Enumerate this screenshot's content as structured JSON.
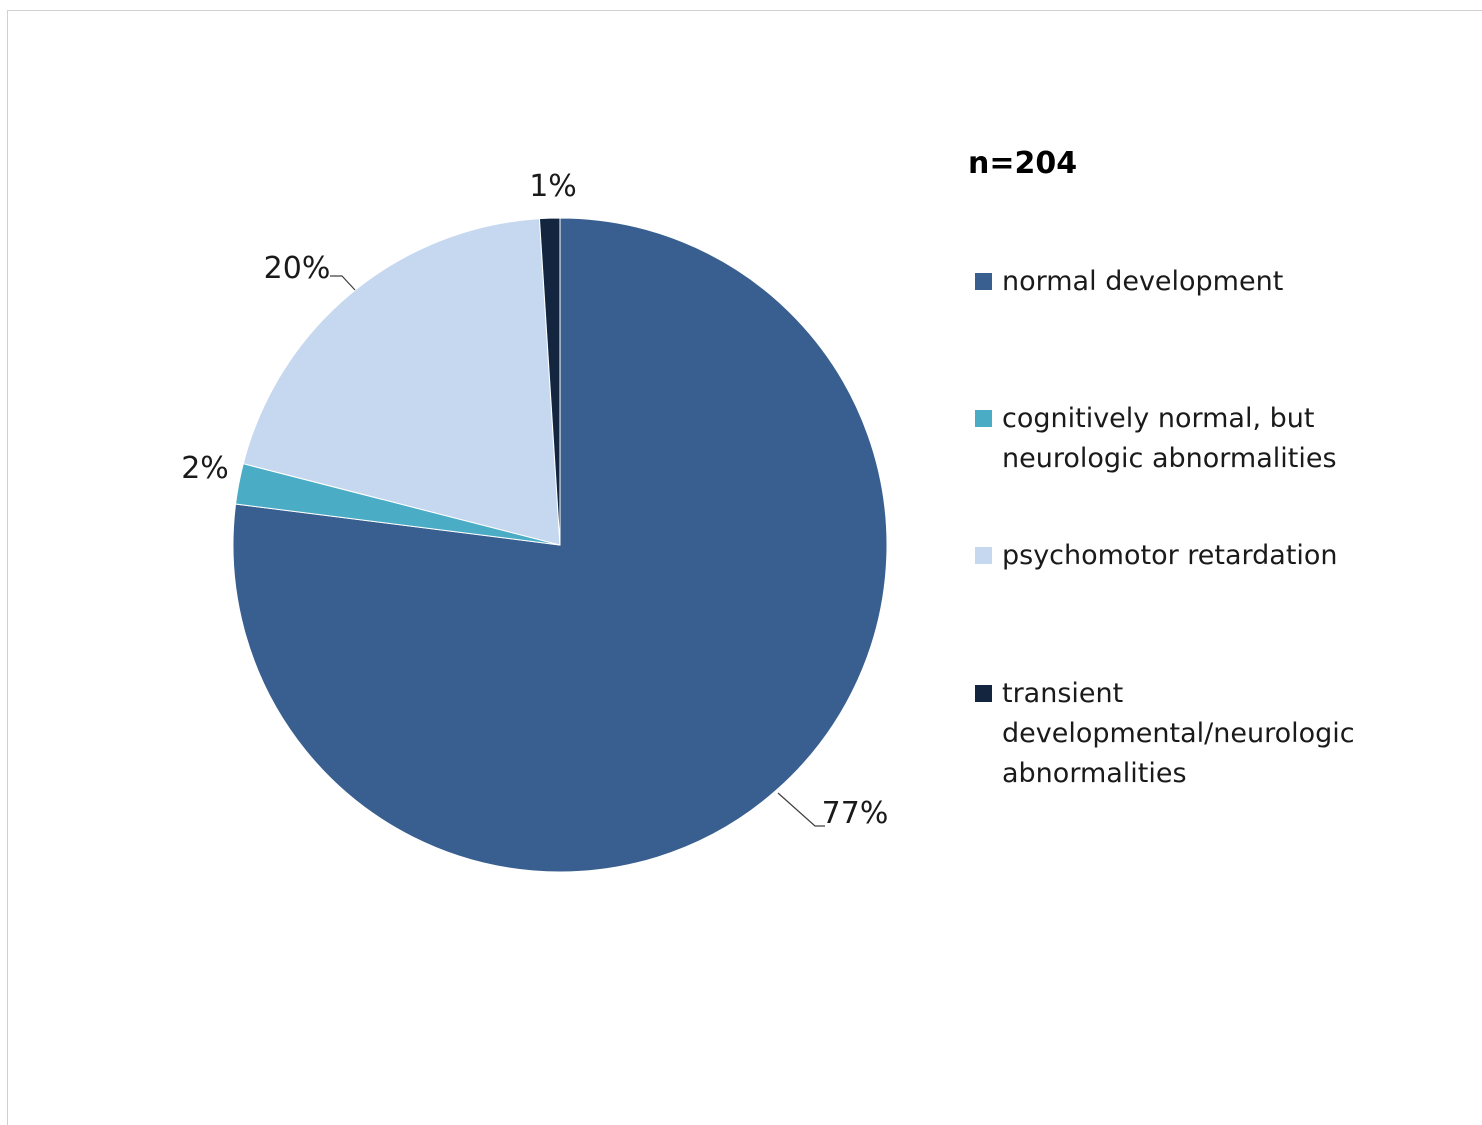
{
  "chart_data": {
    "type": "pie",
    "title": "",
    "legend_title": "n=204",
    "legend_position": "right",
    "start_angle_deg": 0,
    "direction": "clockwise",
    "slices": [
      {
        "label": "normal development",
        "value": 77,
        "data_label": "77%",
        "color": "#385f8f"
      },
      {
        "label": "cognitively normal, but neurologic abnormalities",
        "value": 2,
        "data_label": "2%",
        "color": "#4bacc6"
      },
      {
        "label": "psychomotor retardation",
        "value": 20,
        "data_label": "20%",
        "color": "#c6d8ef"
      },
      {
        "label": "transient developmental/neurologic abnormalities",
        "value": 1,
        "data_label": "1%",
        "color": "#13253f"
      }
    ]
  },
  "legend": {
    "title": "n=204",
    "items": [
      {
        "label": "normal development",
        "color": "#385f8f"
      },
      {
        "label": "cognitively normal, but neurologic abnormalities",
        "color": "#4bacc6"
      },
      {
        "label": "psychomotor retardation",
        "color": "#c6d8ef"
      },
      {
        "label": "transient developmental/neurologic abnormalities",
        "color": "#13253f"
      }
    ]
  }
}
